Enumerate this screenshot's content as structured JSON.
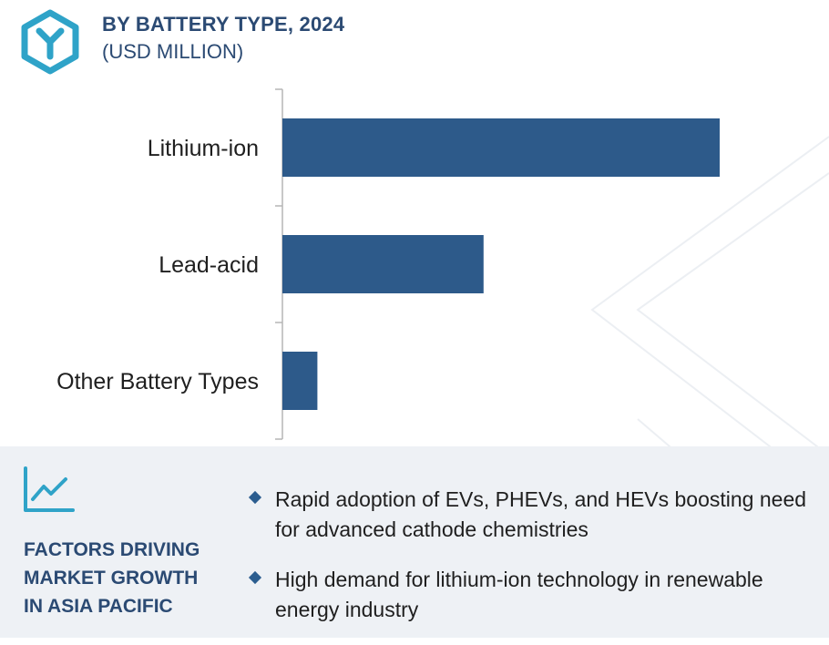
{
  "header": {
    "title": "BY BATTERY TYPE, 2024",
    "subtitle": "(USD MILLION)"
  },
  "chart_data": {
    "type": "bar",
    "orientation": "horizontal",
    "categories": [
      "Lithium-ion",
      "Lead-acid",
      "Other Battery Types"
    ],
    "values": [
      100,
      46,
      8
    ],
    "title": "BY BATTERY TYPE, 2024",
    "xlabel": "",
    "ylabel": "",
    "unit": "(USD MILLION)",
    "xlim": [
      0,
      100
    ],
    "grid": false,
    "legend": "none",
    "bar_color": "#2d5a8a"
  },
  "factors": {
    "title": "FACTORS DRIVING\nMARKET GROWTH\nIN ASIA PACIFIC",
    "icon": "line-chart-icon",
    "bullets": [
      "Rapid adoption of EVs, PHEVs, and HEVs boosting need for advanced cathode chemistries",
      "High demand for lithium-ion technology in renewable energy industry"
    ]
  },
  "colors": {
    "accent": "#2b4a73",
    "bar": "#2d5a8a",
    "logo": "#2fa3c8",
    "panel": "#eef1f5"
  }
}
